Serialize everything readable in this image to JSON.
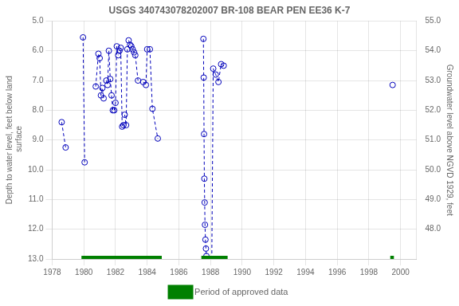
{
  "chart_data": {
    "type": "line",
    "title": "USGS 340743078202007 BR-108 BEAR PEN EE36 K-7",
    "y_label": "Depth to water level, feet below land\n surface",
    "y2_label": "Groundwater level above NGVD 1929, feet",
    "xlim": [
      1978,
      2001
    ],
    "xticks": [
      1978,
      1980,
      1982,
      1984,
      1986,
      1988,
      1990,
      1992,
      1994,
      1996,
      1998,
      2000
    ],
    "ylim": [
      13.0,
      5.0
    ],
    "yticks": [
      {
        "value": 5.0,
        "label": "5.0"
      },
      {
        "value": 6.0,
        "label": "6.0"
      },
      {
        "value": 7.0,
        "label": "7.0"
      },
      {
        "value": 8.0,
        "label": "8.0"
      },
      {
        "value": 9.0,
        "label": "9.0"
      },
      {
        "value": 10.0,
        "label": "10.0"
      },
      {
        "value": 11.0,
        "label": "11.0"
      },
      {
        "value": 12.0,
        "label": "12.0"
      },
      {
        "value": 13.0,
        "label": "13.0"
      }
    ],
    "y2lim": [
      47.0,
      55.0
    ],
    "y2ticks": [
      {
        "value": 55.0,
        "label": "55.0"
      },
      {
        "value": 54.0,
        "label": "54.0"
      },
      {
        "value": 53.0,
        "label": "53.0"
      },
      {
        "value": 52.0,
        "label": "52.0"
      },
      {
        "value": 51.0,
        "label": "51.0"
      },
      {
        "value": 50.0,
        "label": "50.0"
      },
      {
        "value": 49.0,
        "label": "49.0"
      },
      {
        "value": 48.0,
        "label": "48.0"
      }
    ],
    "grid": true,
    "legend": "bottom",
    "series": [
      {
        "x": [
          1978.6,
          1978.85
        ],
        "values": [
          8.4,
          9.25
        ],
        "color": "#0000bb",
        "marker": "open_circle",
        "line_style": "dashed"
      },
      {
        "x": [
          1979.95,
          1980.05
        ],
        "values": [
          5.55,
          9.75
        ],
        "color": "#0000bb",
        "marker": "open_circle",
        "line_style": "dashed"
      },
      {
        "x": [
          1980.75,
          1980.92,
          1981.0,
          1981.08,
          1981.17,
          1981.25
        ],
        "values": [
          7.2,
          6.1,
          6.25,
          7.5,
          7.25,
          7.6
        ],
        "color": "#0000bb",
        "marker": "open_circle",
        "line_style": "dashed"
      },
      {
        "x": [
          1981.42,
          1981.5,
          1981.58,
          1981.67,
          1981.75,
          1981.83
        ],
        "values": [
          7.0,
          7.15,
          6.0,
          6.95,
          7.5,
          8.0
        ],
        "color": "#0000bb",
        "marker": "open_circle",
        "line_style": "dashed"
      },
      {
        "x": [
          1981.92,
          1982.0,
          1982.08,
          1982.17
        ],
        "values": [
          8.0,
          7.75,
          5.85,
          6.15
        ],
        "color": "#0000bb",
        "marker": "open_circle",
        "line_style": "dashed"
      },
      {
        "x": [
          1982.25,
          1982.33,
          1982.42,
          1982.5
        ],
        "values": [
          6.0,
          5.9,
          8.55,
          8.5
        ],
        "color": "#0000bb",
        "marker": "open_circle",
        "line_style": "dashed"
      },
      {
        "x": [
          1982.58,
          1982.67,
          1982.75
        ],
        "values": [
          8.15,
          8.5,
          5.95
        ],
        "color": "#0000bb",
        "marker": "open_circle",
        "line_style": "dashed"
      },
      {
        "x": [
          1982.83,
          1982.92,
          1983.0,
          1983.08,
          1983.17,
          1983.25,
          1983.42
        ],
        "values": [
          5.65,
          5.8,
          5.85,
          5.95,
          6.05,
          6.15,
          7.0
        ],
        "color": "#0000bb",
        "marker": "open_circle",
        "line_style": "dashed"
      },
      {
        "x": [
          1983.75,
          1983.92,
          1984.0
        ],
        "values": [
          7.05,
          7.15,
          5.95
        ],
        "color": "#0000bb",
        "marker": "open_circle",
        "line_style": "dashed"
      },
      {
        "x": [
          1984.17,
          1984.33,
          1984.67
        ],
        "values": [
          5.95,
          7.95,
          8.95
        ],
        "color": "#0000bb",
        "marker": "open_circle",
        "line_style": "dashed"
      },
      {
        "x": [
          1987.55,
          1987.57,
          1987.59,
          1987.61,
          1987.63,
          1987.65,
          1987.68,
          1987.71,
          1987.74,
          1987.77
        ],
        "values": [
          5.6,
          6.9,
          8.8,
          10.3,
          11.1,
          11.85,
          12.35,
          12.65,
          12.9,
          13.0
        ],
        "color": "#0000bb",
        "marker": "open_circle",
        "line_style": "dashed"
      },
      {
        "x": [
          1988.08,
          1988.17,
          1988.33,
          1988.5,
          1988.67,
          1988.83
        ],
        "values": [
          13.0,
          6.6,
          6.8,
          7.05,
          6.45,
          6.5
        ],
        "color": "#0000bb",
        "marker": "open_circle",
        "line_style": "dashed"
      },
      {
        "x": [
          1999.5
        ],
        "values": [
          7.15
        ],
        "color": "#0000bb",
        "marker": "open_circle",
        "line_style": "dashed"
      },
      {
        "name": "Period of approved data",
        "type": "bar",
        "color": "#008000",
        "y": 13.0,
        "ranges": [
          [
            1979.85,
            1984.92
          ],
          [
            1987.42,
            1989.08
          ],
          [
            1999.35,
            1999.58
          ]
        ]
      }
    ]
  }
}
